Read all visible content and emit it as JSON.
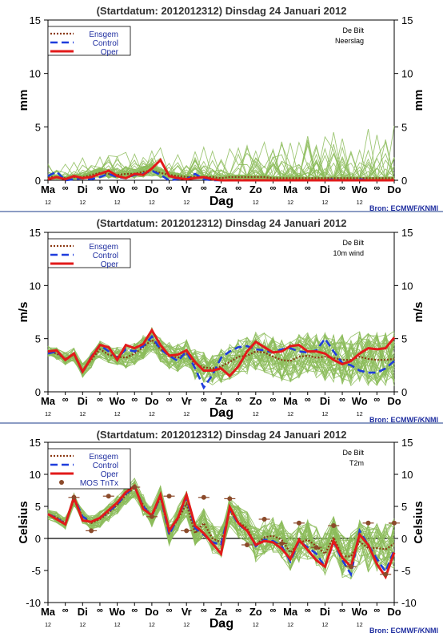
{
  "page": {
    "header": "(Startdatum: 2012012312)   Dinsdag   24 Januari   2012",
    "source": "Bron: ECMWF/KNMI",
    "x_axis_title": "Dag",
    "x_tick_labels": [
      "Ma",
      "∞",
      "Di",
      "∞",
      "Wo",
      "∞",
      "Do",
      "∞",
      "Vr",
      "∞",
      "Za",
      "∞",
      "Zo",
      "∞",
      "Ma",
      "∞",
      "Di",
      "∞",
      "Wo",
      "∞",
      "Do"
    ],
    "x_tick_sublabels": [
      "12",
      "12",
      "12",
      "12",
      "12",
      "12",
      "12",
      "12",
      "12",
      "12"
    ],
    "colors": {
      "ensemble": "#8cbc5a",
      "ensgem": "#8b3a14",
      "control": "#1f3ddc",
      "oper": "#e21a1a",
      "mos": "#8b4a2a",
      "title_text": "#333333",
      "source_text": "#1f2ea0",
      "panel_divider": "#1a3a8a"
    }
  },
  "chart_data": [
    {
      "type": "line",
      "station": "De Bilt",
      "variable": "Neerslag",
      "ylabel": "mm",
      "ylim": [
        0,
        15
      ],
      "yticks": [
        0,
        5,
        10,
        15
      ],
      "x_step_hours": 6,
      "x": [
        0,
        1,
        2,
        3,
        4,
        5,
        6,
        7,
        8,
        9,
        10,
        11,
        12,
        13,
        14,
        15,
        16,
        17,
        18,
        19,
        20,
        21,
        22,
        23,
        24,
        25,
        26,
        27,
        28,
        29,
        30,
        31,
        32,
        33,
        34,
        35,
        36,
        37,
        38,
        39,
        40
      ],
      "legend": [
        "Ensgem",
        "Control",
        "Oper"
      ],
      "series": [
        {
          "name": "Ensgem",
          "style": "dotted",
          "values": [
            0.3,
            0.3,
            0.2,
            0.3,
            0.3,
            0.5,
            0.7,
            0.6,
            0.5,
            0.6,
            0.6,
            0.8,
            0.9,
            0.7,
            0.5,
            0.4,
            0.3,
            0.3,
            0.3,
            0.3,
            0.2,
            0.3,
            0.3,
            0.3,
            0.3,
            0.3,
            0.2,
            0.2,
            0.2,
            0.2,
            0.2,
            0.2,
            0.2,
            0.2,
            0.2,
            0.2,
            0.2,
            0.2,
            0.2,
            0.2,
            0.2
          ]
        },
        {
          "name": "Control",
          "style": "dashed",
          "values": [
            0.4,
            0.8,
            0.0,
            0.1,
            0.2,
            0.1,
            0.3,
            0.6,
            0.3,
            0.2,
            0.5,
            0.6,
            0.9,
            0.5,
            0.0,
            0.1,
            0.1,
            0.6,
            0.1,
            0.0,
            0.0,
            0.0,
            0.0,
            0.0,
            0.0,
            0.0,
            0.0,
            0.0,
            0.0,
            0.0,
            0.0,
            0.0,
            0.0,
            0.1,
            0.0,
            0.0,
            0.1,
            0.0,
            0.0,
            0.0,
            0.0
          ]
        },
        {
          "name": "Oper",
          "style": "solid",
          "values": [
            0.1,
            0.3,
            0.1,
            0.4,
            0.2,
            0.3,
            0.6,
            0.9,
            0.4,
            0.2,
            0.6,
            0.5,
            1.1,
            1.9,
            0.4,
            0.2,
            0.1,
            0.2,
            0.3,
            0.1,
            0.0,
            0.0,
            0.0,
            0.0,
            0.0,
            0.0,
            0.0,
            0.0,
            0.0,
            0.0,
            0.0,
            0.0,
            0.0,
            0.0,
            0.0,
            0.0,
            0.0,
            0.0,
            0.0,
            0.0,
            0.0
          ]
        }
      ]
    },
    {
      "type": "line",
      "station": "De Bilt",
      "variable": "10m wind",
      "ylabel": "m/s",
      "ylim": [
        0,
        15
      ],
      "yticks": [
        0,
        5,
        10,
        15
      ],
      "x_step_hours": 6,
      "x": [
        0,
        1,
        2,
        3,
        4,
        5,
        6,
        7,
        8,
        9,
        10,
        11,
        12,
        13,
        14,
        15,
        16,
        17,
        18,
        19,
        20,
        21,
        22,
        23,
        24,
        25,
        26,
        27,
        28,
        29,
        30,
        31,
        32,
        33,
        34,
        35,
        36,
        37,
        38,
        39,
        40
      ],
      "legend": [
        "Ensgem",
        "Control",
        "Oper"
      ],
      "series": [
        {
          "name": "Ensgem",
          "style": "dotted",
          "values": [
            3.8,
            3.6,
            3.1,
            3.5,
            2.0,
            3.0,
            4.0,
            3.5,
            3.3,
            3.2,
            3.6,
            4.2,
            4.9,
            4.0,
            3.4,
            3.2,
            3.6,
            2.6,
            2.3,
            2.2,
            2.4,
            2.8,
            3.3,
            3.4,
            3.8,
            3.7,
            3.3,
            3.0,
            2.9,
            3.3,
            3.4,
            3.2,
            3.3,
            3.2,
            3.0,
            3.0,
            3.3,
            3.1,
            3.0,
            3.0,
            3.1
          ]
        },
        {
          "name": "Control",
          "style": "dashed",
          "values": [
            3.6,
            3.8,
            3.0,
            3.6,
            1.8,
            3.3,
            4.4,
            3.8,
            3.2,
            4.0,
            3.8,
            4.3,
            5.2,
            4.0,
            3.4,
            2.9,
            3.8,
            2.2,
            0.4,
            1.6,
            3.2,
            3.8,
            4.2,
            4.3,
            4.0,
            3.9,
            3.7,
            4.0,
            4.1,
            3.8,
            3.7,
            3.9,
            5.0,
            3.8,
            2.7,
            2.5,
            2.0,
            1.8,
            1.8,
            2.2,
            2.9
          ]
        },
        {
          "name": "Oper",
          "style": "solid",
          "values": [
            3.8,
            3.9,
            3.0,
            3.6,
            1.9,
            3.2,
            4.4,
            4.2,
            3.0,
            4.4,
            4.1,
            4.5,
            5.8,
            4.4,
            3.4,
            3.5,
            3.9,
            2.8,
            2.0,
            2.0,
            2.2,
            1.5,
            2.4,
            3.8,
            4.7,
            4.2,
            3.7,
            3.8,
            4.3,
            4.4,
            3.8,
            3.8,
            3.6,
            3.0,
            2.6,
            2.9,
            3.6,
            4.1,
            4.0,
            4.1,
            5.1
          ]
        }
      ]
    },
    {
      "type": "line",
      "station": "De Bilt",
      "variable": "T2m",
      "ylabel": "Celsius",
      "ylim": [
        -10,
        15
      ],
      "yticks": [
        -10,
        -5,
        0,
        5,
        10,
        15
      ],
      "x_step_hours": 6,
      "x": [
        0,
        1,
        2,
        3,
        4,
        5,
        6,
        7,
        8,
        9,
        10,
        11,
        12,
        13,
        14,
        15,
        16,
        17,
        18,
        19,
        20,
        21,
        22,
        23,
        24,
        25,
        26,
        27,
        28,
        29,
        30,
        31,
        32,
        33,
        34,
        35,
        36,
        37,
        38,
        39,
        40
      ],
      "legend": [
        "Ensgem",
        "Control",
        "Oper",
        "MOS TnTx"
      ],
      "series": [
        {
          "name": "Ensgem",
          "style": "dotted",
          "values": [
            3.8,
            3.3,
            2.4,
            6.0,
            3.4,
            2.4,
            3.0,
            4.0,
            5.2,
            6.8,
            7.9,
            5.2,
            3.4,
            6.4,
            0.8,
            3.0,
            5.4,
            0.8,
            2.4,
            0.0,
            -0.6,
            4.2,
            2.6,
            1.6,
            -1.0,
            0.2,
            0.4,
            -0.2,
            -2.2,
            -0.7,
            -0.2,
            -1.2,
            -2.4,
            0.2,
            -2.8,
            -2.8,
            -0.5,
            -1.5,
            -1.5,
            -1.7,
            -0.8
          ]
        },
        {
          "name": "Control",
          "style": "dashed",
          "values": [
            3.8,
            3.2,
            2.2,
            6.4,
            3.4,
            2.6,
            3.2,
            4.2,
            5.3,
            7.0,
            8.0,
            5.0,
            3.4,
            6.6,
            0.6,
            3.2,
            6.4,
            1.6,
            0.6,
            -0.6,
            -1.0,
            4.6,
            2.2,
            1.2,
            -1.2,
            -0.2,
            -0.4,
            -1.2,
            -3.6,
            -0.4,
            -1.4,
            -2.4,
            -4.4,
            -0.6,
            -3.4,
            -5.6,
            1.2,
            -1.0,
            -3.2,
            -5.2,
            -1.8
          ]
        },
        {
          "name": "Oper",
          "style": "solid",
          "values": [
            3.8,
            3.0,
            2.2,
            6.4,
            2.8,
            2.6,
            3.2,
            4.4,
            5.6,
            7.2,
            8.2,
            4.6,
            3.6,
            6.8,
            1.2,
            3.2,
            6.8,
            2.0,
            0.8,
            -0.8,
            -2.4,
            4.9,
            2.4,
            1.2,
            -1.0,
            -0.4,
            -0.6,
            -1.6,
            -3.2,
            -0.2,
            -1.8,
            -3.4,
            -4.4,
            -0.4,
            -3.0,
            -4.4,
            0.6,
            -1.0,
            -4.0,
            -6.0,
            -2.2
          ]
        },
        {
          "name": "MOS TnTx",
          "style": "markers",
          "x": [
            3,
            5,
            7,
            10,
            12,
            14,
            16,
            18,
            21,
            23,
            25,
            27,
            29,
            31,
            33,
            35,
            37,
            39,
            40
          ],
          "values": [
            6.4,
            1.2,
            6.6,
            8.0,
            3.4,
            6.6,
            1.2,
            6.4,
            6.2,
            -1.0,
            3.0,
            -0.8,
            2.4,
            -1.4,
            2.0,
            -4.4,
            2.4,
            -5.6,
            2.4
          ]
        }
      ]
    }
  ]
}
